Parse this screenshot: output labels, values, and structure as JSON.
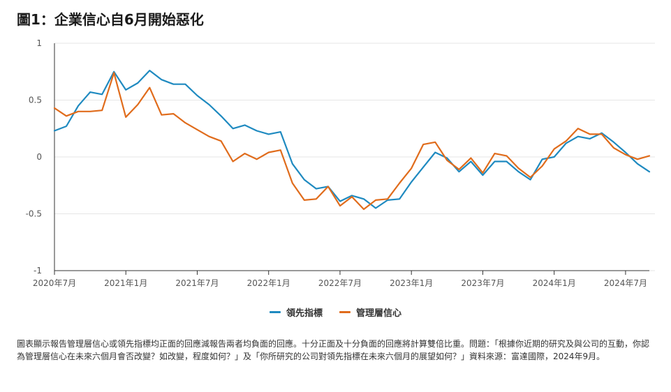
{
  "title": "圖1：企業信心自6月開始惡化",
  "footnote": "圖表顯示報告管理層信心或領先指標均正面的回應減報告兩者均負面的回應。十分正面及十分負面的回應將計算雙倍比重。問題：「根據你近期的研究及與公司的互動，你認為管理層信心在未來六個月會否改變？如改變，程度如何？」及「你所研究的公司對領先指標在未來六個月的展望如何？」資料來源：富達國際，2024年9月。",
  "colors": {
    "leading": "#1f8ac0",
    "management": "#e06c1c",
    "axis": "#333333",
    "grid": "#e6e6e6"
  },
  "chart_data": {
    "type": "line",
    "ylim": [
      -1,
      1
    ],
    "yticks": [
      "1",
      "0.5",
      "0",
      "-0.5",
      "-1"
    ],
    "ytick_values": [
      1,
      0.5,
      0,
      -0.5,
      -1
    ],
    "xtick_labels": [
      "2020年7月",
      "2021年1月",
      "2021年7月",
      "2022年1月",
      "2022年7月",
      "2023年1月",
      "2023年7月",
      "2024年1月",
      "2024年7月"
    ],
    "xtick_index": [
      0,
      6,
      12,
      18,
      24,
      30,
      36,
      42,
      48
    ],
    "x_count": 51,
    "legend_position": "bottom-center",
    "series": [
      {
        "name": "領先指標",
        "values": [
          0.23,
          0.27,
          0.45,
          0.57,
          0.55,
          0.75,
          0.59,
          0.65,
          0.76,
          0.68,
          0.64,
          0.64,
          0.54,
          0.46,
          0.36,
          0.25,
          0.28,
          0.23,
          0.2,
          0.22,
          -0.06,
          -0.2,
          -0.28,
          -0.26,
          -0.39,
          -0.34,
          -0.37,
          -0.45,
          -0.38,
          -0.37,
          -0.22,
          -0.09,
          0.04,
          -0.01,
          -0.13,
          -0.04,
          -0.16,
          -0.04,
          -0.04,
          -0.13,
          -0.2,
          -0.02,
          0.0,
          0.12,
          0.18,
          0.16,
          0.21,
          0.13,
          0.04,
          -0.06,
          -0.13
        ]
      },
      {
        "name": "管理層信心",
        "values": [
          0.43,
          0.36,
          0.4,
          0.4,
          0.41,
          0.74,
          0.35,
          0.46,
          0.61,
          0.37,
          0.38,
          0.3,
          0.24,
          0.18,
          0.14,
          -0.04,
          0.03,
          -0.02,
          0.04,
          0.06,
          -0.23,
          -0.38,
          -0.37,
          -0.26,
          -0.43,
          -0.35,
          -0.46,
          -0.38,
          -0.37,
          -0.23,
          -0.1,
          0.11,
          0.13,
          -0.03,
          -0.11,
          -0.01,
          -0.14,
          0.03,
          0.01,
          -0.1,
          -0.18,
          -0.08,
          0.07,
          0.14,
          0.25,
          0.2,
          0.2,
          0.08,
          0.02,
          -0.02,
          0.01
        ]
      }
    ]
  }
}
